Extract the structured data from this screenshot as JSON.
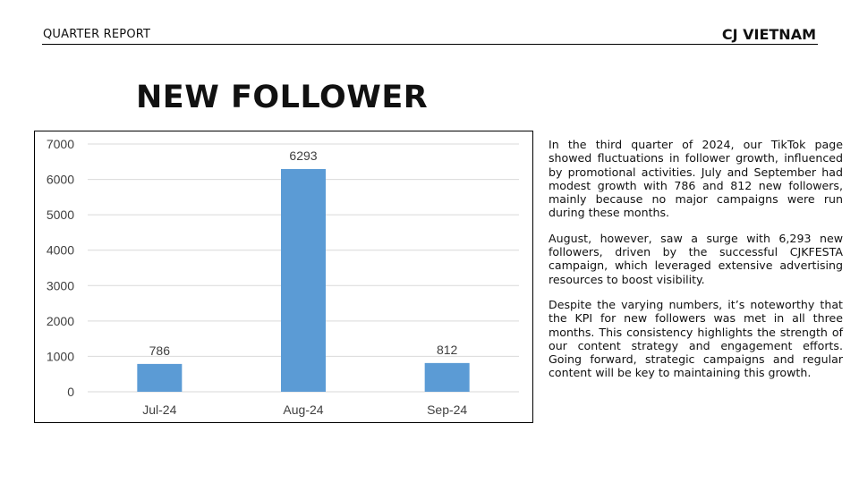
{
  "header": {
    "left_label": "QUARTER REPORT",
    "right_label": "CJ VIETNAM"
  },
  "title": "NEW FOLLOWER",
  "body_paragraphs": [
    "In the third quarter of 2024, our TikTok page showed fluctuations in follower growth, influenced by promotional activities. July and September had modest growth with 786 and 812 new followers, mainly because no major campaigns were run during these months.",
    "August, however, saw a surge with 6,293 new followers, driven by the successful CJKFESTA campaign, which leveraged extensive advertising resources to boost visibility.",
    "Despite the varying numbers, it’s noteworthy that the KPI for new followers was met in all three months. This consistency highlights the strength of our content strategy and engagement efforts. Going forward, strategic campaigns and regular content will be key to maintaining this growth."
  ],
  "chart_data": {
    "type": "bar",
    "categories": [
      "Jul-24",
      "Aug-24",
      "Sep-24"
    ],
    "values": [
      786,
      6293,
      812
    ],
    "data_labels": [
      "786",
      "6293",
      "812"
    ],
    "ylim": [
      0,
      7000
    ],
    "yticks": [
      0,
      1000,
      2000,
      3000,
      4000,
      5000,
      6000,
      7000
    ],
    "grid": true,
    "legend": "none",
    "bar_color": "#5B9BD5",
    "grid_color": "#D9D9D9",
    "label_color": "#404040"
  }
}
